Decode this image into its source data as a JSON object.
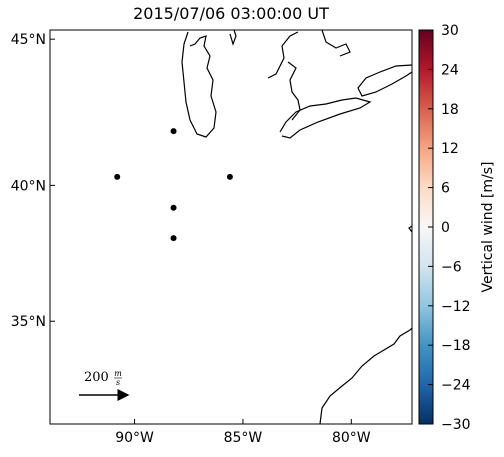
{
  "chart_data": {
    "type": "scatter",
    "title": "2015/07/06 03:00:00 UT",
    "projection": "mercator",
    "xlim": [
      -93.9,
      -77.2
    ],
    "ylim": [
      31.0,
      45.3
    ],
    "xticks": [
      {
        "value": -90,
        "label": "90°W"
      },
      {
        "value": -85,
        "label": "85°W"
      },
      {
        "value": -80,
        "label": "80°W"
      }
    ],
    "yticks": [
      {
        "value": 35,
        "label": "35°N"
      },
      {
        "value": 40,
        "label": "40°N"
      },
      {
        "value": 45,
        "label": "45°N"
      }
    ],
    "x": [
      -88.2,
      -90.8,
      -85.6,
      -88.2,
      -88.2
    ],
    "y": [
      41.9,
      40.3,
      40.3,
      39.2,
      38.1
    ],
    "color": "#000000",
    "colorbar": {
      "label": "Vertical wind [m/s]",
      "lim": [
        -30,
        30
      ],
      "ticks": [
        {
          "value": -30,
          "label": "−30"
        },
        {
          "value": -24,
          "label": "−24"
        },
        {
          "value": -18,
          "label": "−18"
        },
        {
          "value": -12,
          "label": "−12"
        },
        {
          "value": -6,
          "label": "−6"
        },
        0,
        6,
        12,
        18,
        24,
        30
      ]
    },
    "scale_arrow": {
      "value": "200",
      "unit_num": "m",
      "unit_den": "s"
    }
  }
}
